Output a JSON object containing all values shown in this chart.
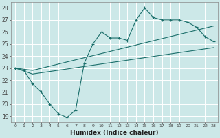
{
  "xlabel": "Humidex (Indice chaleur)",
  "xlim": [
    -0.5,
    23.5
  ],
  "ylim": [
    18.5,
    28.5
  ],
  "xticks": [
    0,
    1,
    2,
    3,
    4,
    5,
    6,
    7,
    8,
    9,
    10,
    11,
    12,
    13,
    14,
    15,
    16,
    17,
    18,
    19,
    20,
    21,
    22,
    23
  ],
  "yticks": [
    19,
    20,
    21,
    22,
    23,
    24,
    25,
    26,
    27,
    28
  ],
  "background_color": "#cce8e8",
  "grid_color": "#b0d8d8",
  "line_color": "#1a6e6a",
  "line1_x": [
    0,
    1,
    2,
    3,
    4,
    5,
    6,
    7,
    8,
    9,
    10,
    11,
    12,
    13,
    14,
    15,
    16,
    17,
    18,
    19,
    20,
    21,
    22,
    23
  ],
  "line1_y": [
    23.0,
    22.8,
    21.7,
    21.0,
    20.0,
    19.2,
    18.9,
    19.5,
    23.4,
    25.0,
    26.0,
    25.5,
    25.5,
    25.3,
    27.0,
    28.0,
    27.2,
    27.0,
    27.0,
    27.0,
    26.8,
    26.4,
    25.6,
    25.2
  ],
  "line2_x": [
    0,
    2,
    23
  ],
  "line2_y": [
    23.0,
    22.8,
    26.5
  ],
  "line3_x": [
    0,
    2,
    23
  ],
  "line3_y": [
    23.0,
    22.5,
    24.7
  ]
}
